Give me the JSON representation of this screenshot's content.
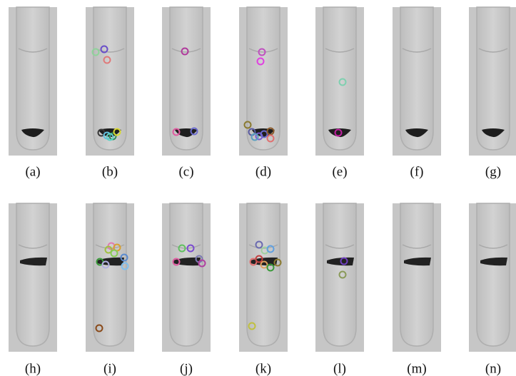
{
  "panels": [
    "(a)",
    "(b)",
    "(c)",
    "(d)",
    "(e)",
    "(f)",
    "(g)",
    "(h)",
    "(i)",
    "(j)",
    "(k)",
    "(l)",
    "(m)",
    "(n)"
  ]
}
